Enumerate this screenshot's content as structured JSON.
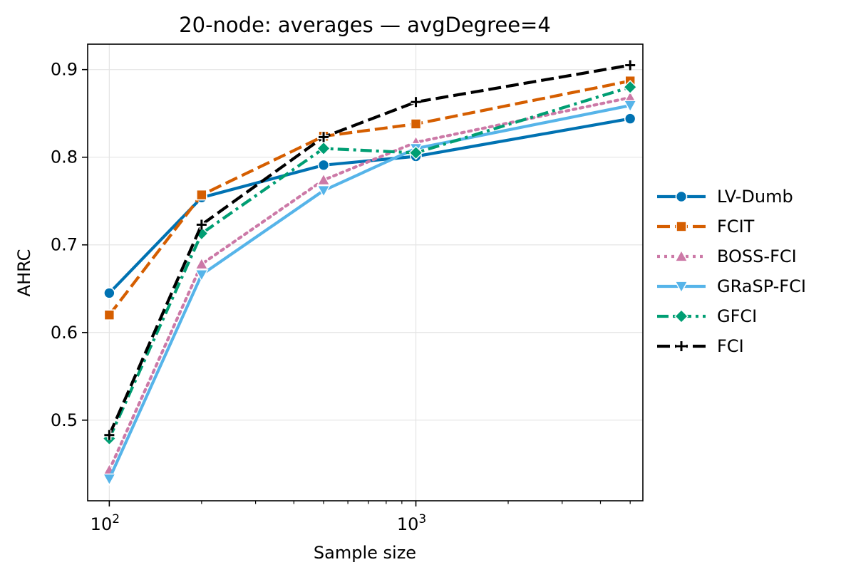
{
  "chart_data": {
    "type": "line",
    "title": "20-node: averages — avgDegree=4",
    "xlabel": "Sample size",
    "ylabel": "AHRC",
    "xscale": "log",
    "xlim": [
      85,
      5500
    ],
    "ylim": [
      0.408,
      0.929
    ],
    "grid": true,
    "legend": "outside-right",
    "x": [
      100,
      200,
      500,
      1000,
      5000
    ],
    "x_major_ticks": [
      {
        "value": 100,
        "base": "10",
        "exp": "2"
      },
      {
        "value": 1000,
        "base": "10",
        "exp": "3"
      }
    ],
    "x_minor_ticks": [
      200,
      300,
      400,
      500,
      600,
      700,
      800,
      900,
      2000,
      3000,
      4000,
      5000
    ],
    "y_ticks": [
      {
        "value": 0.5,
        "label": "0.5"
      },
      {
        "value": 0.6,
        "label": "0.6"
      },
      {
        "value": 0.7,
        "label": "0.7"
      },
      {
        "value": 0.8,
        "label": "0.8"
      },
      {
        "value": 0.9,
        "label": "0.9"
      }
    ],
    "series": [
      {
        "name": "LV-Dumb",
        "key": "lv-dumb",
        "color": "#0072B2",
        "dash": "solid",
        "marker": "circle",
        "values": [
          0.645,
          0.754,
          0.791,
          0.801,
          0.844
        ]
      },
      {
        "name": "FCIT",
        "key": "fcit",
        "color": "#D55E00",
        "dash": "dashed",
        "marker": "square",
        "values": [
          0.62,
          0.757,
          0.824,
          0.838,
          0.887
        ]
      },
      {
        "name": "BOSS-FCI",
        "key": "boss-fci",
        "color": "#CC79A7",
        "dash": "dotted",
        "marker": "triangle-up",
        "values": [
          0.443,
          0.678,
          0.774,
          0.817,
          0.868
        ]
      },
      {
        "name": "GRaSP-FCI",
        "key": "grasp-fci",
        "color": "#56B4E9",
        "dash": "solid",
        "marker": "triangle-down",
        "values": [
          0.433,
          0.666,
          0.762,
          0.81,
          0.859
        ]
      },
      {
        "name": "GFCI",
        "key": "gfci",
        "color": "#009E73",
        "dash": "dashdot",
        "marker": "diamond",
        "values": [
          0.479,
          0.713,
          0.81,
          0.805,
          0.88
        ]
      },
      {
        "name": "FCI",
        "key": "fci",
        "color": "#000000",
        "dash": "dashed",
        "marker": "plus",
        "values": [
          0.483,
          0.723,
          0.823,
          0.863,
          0.905
        ]
      }
    ]
  }
}
